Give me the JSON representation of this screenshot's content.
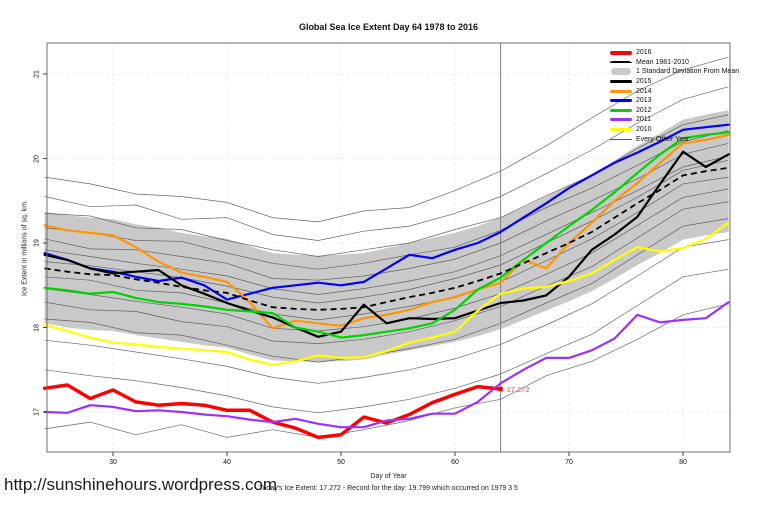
{
  "page": {
    "title": "Global Sea Ice Extent Day 64 1978 to 2016",
    "footer_url": "http://sunshinehours.wordpress.com",
    "footer_caption": "Today's Ice Extent: 17.272  - Record for the day: 19.799 which occurred on 1979 3 5"
  },
  "chart_data": {
    "type": "line",
    "title": "Global Sea Ice Extent Day 64 1978 to 2016",
    "xlabel": "Day of Year",
    "ylabel": "Ice Extent in millions of sq. km.",
    "xlim": [
      24,
      85
    ],
    "ylim": [
      16.5,
      21.4
    ],
    "xticks": [
      30,
      40,
      50,
      60,
      70,
      80
    ],
    "yticks": [
      17,
      18,
      19,
      20,
      21
    ],
    "grid": "dotted-light-gray",
    "vline_day": 64,
    "annotation": {
      "day": 64,
      "value": 17.272,
      "text": "17.272",
      "color": "#f87d7d"
    },
    "x_days": [
      24,
      26,
      28,
      30,
      32,
      34,
      36,
      38,
      40,
      42,
      44,
      46,
      48,
      50,
      52,
      54,
      56,
      58,
      60,
      62,
      64,
      66,
      68,
      70,
      72,
      74,
      76,
      78,
      80,
      82,
      84
    ],
    "band": {
      "name": "1 Standard Deviation From Mean",
      "color": "#c9c9c9",
      "upper": [
        19.37,
        19.33,
        19.3,
        19.28,
        19.22,
        19.18,
        19.12,
        19.08,
        19.05,
        18.96,
        18.88,
        18.86,
        18.85,
        18.86,
        18.88,
        18.94,
        19.0,
        19.06,
        19.12,
        19.2,
        19.3,
        19.42,
        19.55,
        19.68,
        19.82,
        19.98,
        20.15,
        20.3,
        20.46,
        20.52,
        20.57
      ],
      "lower": [
        18.05,
        18.0,
        17.97,
        17.96,
        17.91,
        17.87,
        17.83,
        17.79,
        17.76,
        17.68,
        17.61,
        17.6,
        17.59,
        17.6,
        17.62,
        17.68,
        17.73,
        17.78,
        17.83,
        17.9,
        17.98,
        18.09,
        18.2,
        18.31,
        18.43,
        18.58,
        18.74,
        18.88,
        19.04,
        19.09,
        19.13
      ]
    },
    "mean": {
      "name": "Mean 1981-2010",
      "color": "#000000",
      "dashed": true,
      "values": [
        18.7,
        18.66,
        18.63,
        18.62,
        18.57,
        18.53,
        18.48,
        18.44,
        18.41,
        18.32,
        18.24,
        18.22,
        18.21,
        18.22,
        18.24,
        18.3,
        18.36,
        18.41,
        18.47,
        18.55,
        18.64,
        18.76,
        18.88,
        19.0,
        19.13,
        19.3,
        19.47,
        19.63,
        19.8,
        19.85,
        19.89
      ]
    },
    "series": [
      {
        "name": "2013",
        "color": "#0000ff",
        "width": 2.2,
        "values": [
          18.88,
          18.8,
          18.7,
          18.66,
          18.6,
          18.55,
          18.59,
          18.5,
          18.33,
          18.4,
          18.47,
          18.5,
          18.53,
          18.5,
          18.54,
          18.7,
          18.86,
          18.82,
          18.92,
          19.0,
          19.13,
          19.3,
          19.47,
          19.65,
          19.8,
          19.95,
          20.07,
          20.2,
          20.34,
          20.37,
          20.4
        ]
      },
      {
        "name": "2014",
        "color": "#ff9500",
        "width": 2.2,
        "values": [
          19.21,
          19.15,
          19.12,
          19.09,
          18.95,
          18.78,
          18.65,
          18.6,
          18.54,
          18.3,
          17.99,
          18.08,
          18.05,
          18.02,
          18.11,
          18.15,
          18.21,
          18.3,
          18.36,
          18.45,
          18.53,
          18.8,
          18.7,
          19.0,
          19.24,
          19.5,
          19.71,
          19.95,
          20.18,
          20.22,
          20.28
        ]
      },
      {
        "name": "2015",
        "color": "#000000",
        "width": 2.2,
        "values": [
          18.86,
          18.8,
          18.7,
          18.64,
          18.66,
          18.68,
          18.5,
          18.4,
          18.29,
          18.2,
          18.12,
          18.0,
          17.89,
          17.95,
          18.27,
          18.05,
          18.11,
          18.1,
          18.11,
          18.2,
          18.29,
          18.32,
          18.38,
          18.6,
          18.92,
          19.1,
          19.31,
          19.7,
          20.08,
          19.9,
          20.05
        ]
      },
      {
        "name": "2012",
        "color": "#00d400",
        "width": 2.2,
        "values": [
          18.47,
          18.44,
          18.4,
          18.42,
          18.35,
          18.3,
          18.28,
          18.25,
          18.21,
          18.19,
          18.17,
          18.0,
          17.95,
          17.88,
          17.91,
          17.95,
          17.99,
          18.05,
          18.21,
          18.45,
          18.59,
          18.8,
          19.0,
          19.2,
          19.39,
          19.6,
          19.83,
          20.05,
          20.24,
          20.28,
          20.31
        ]
      },
      {
        "name": "2010",
        "color": "#ffff00",
        "width": 2.2,
        "values": [
          18.03,
          17.96,
          17.88,
          17.82,
          17.8,
          17.77,
          17.75,
          17.73,
          17.71,
          17.62,
          17.56,
          17.6,
          17.67,
          17.64,
          17.65,
          17.72,
          17.82,
          17.88,
          17.95,
          18.2,
          18.4,
          18.46,
          18.48,
          18.55,
          18.64,
          18.8,
          18.95,
          18.9,
          18.94,
          19.05,
          19.24
        ]
      },
      {
        "name": "2016",
        "color": "#ff0000",
        "width": 3.5,
        "endpoint": true,
        "values": [
          17.28,
          17.32,
          17.16,
          17.26,
          17.12,
          17.08,
          17.1,
          17.08,
          17.02,
          17.02,
          16.88,
          16.81,
          16.7,
          16.73,
          16.94,
          16.87,
          16.97,
          17.11,
          17.21,
          17.3,
          17.272,
          null,
          null,
          null,
          null,
          null,
          null,
          null,
          null,
          null,
          null
        ]
      },
      {
        "name": "2011",
        "color": "#9b30ff",
        "width": 2.2,
        "values": [
          17.0,
          16.99,
          17.08,
          17.06,
          17.01,
          17.02,
          17.0,
          16.97,
          16.95,
          16.91,
          16.88,
          16.92,
          16.86,
          16.82,
          16.82,
          16.9,
          16.92,
          16.98,
          16.98,
          17.12,
          17.34,
          17.5,
          17.64,
          17.64,
          17.73,
          17.87,
          18.15,
          18.06,
          18.09,
          18.11,
          18.3
        ]
      }
    ],
    "other_years": {
      "name": "Every Other Year",
      "color": "#555555",
      "width": 0.7,
      "x_days": [
        24,
        28,
        32,
        36,
        40,
        44,
        48,
        52,
        56,
        60,
        64,
        68,
        72,
        76,
        80,
        84
      ],
      "lines": [
        [
          19.78,
          19.7,
          19.58,
          19.55,
          19.48,
          19.3,
          19.25,
          19.38,
          19.42,
          19.62,
          19.85,
          20.15,
          20.48,
          20.8,
          21.05,
          21.2
        ],
        [
          19.55,
          19.43,
          19.45,
          19.28,
          19.3,
          19.1,
          19.03,
          19.14,
          19.2,
          19.35,
          19.55,
          19.82,
          20.1,
          20.42,
          20.7,
          20.85
        ],
        [
          19.35,
          19.32,
          19.18,
          19.16,
          19.03,
          18.92,
          18.84,
          18.92,
          19.0,
          19.16,
          19.3,
          19.56,
          19.8,
          20.12,
          20.4,
          20.52
        ],
        [
          19.18,
          19.12,
          19.03,
          19.02,
          18.88,
          18.76,
          18.69,
          18.76,
          18.86,
          18.95,
          19.15,
          19.42,
          19.65,
          19.92,
          20.2,
          20.33
        ],
        [
          19.05,
          18.93,
          18.92,
          18.84,
          18.76,
          18.58,
          18.56,
          18.61,
          18.7,
          18.81,
          19.0,
          19.26,
          19.5,
          19.76,
          20.05,
          20.18
        ],
        [
          18.92,
          18.84,
          18.76,
          18.69,
          18.61,
          18.46,
          18.39,
          18.46,
          18.55,
          18.66,
          18.85,
          19.1,
          19.36,
          19.62,
          19.9,
          20.03
        ],
        [
          18.78,
          18.73,
          18.66,
          18.59,
          18.49,
          18.36,
          18.29,
          18.36,
          18.45,
          18.58,
          18.74,
          19.0,
          19.26,
          19.54,
          19.86,
          19.98
        ],
        [
          18.6,
          18.56,
          18.44,
          18.41,
          18.29,
          18.16,
          18.09,
          18.16,
          18.25,
          18.36,
          18.54,
          18.79,
          19.05,
          19.36,
          19.7,
          19.78
        ],
        [
          18.46,
          18.39,
          18.31,
          18.24,
          18.16,
          17.99,
          17.96,
          18.01,
          18.1,
          18.23,
          18.4,
          18.63,
          18.88,
          19.21,
          19.54,
          19.64
        ],
        [
          18.3,
          18.21,
          18.19,
          18.07,
          18.01,
          17.84,
          17.81,
          17.86,
          17.95,
          18.08,
          18.25,
          18.49,
          18.72,
          19.06,
          19.4,
          19.49
        ],
        [
          18.1,
          18.06,
          17.94,
          17.91,
          17.79,
          17.66,
          17.59,
          17.66,
          17.75,
          17.86,
          18.05,
          18.29,
          18.52,
          18.86,
          19.2,
          19.29
        ],
        [
          17.85,
          17.79,
          17.71,
          17.63,
          17.54,
          17.41,
          17.34,
          17.41,
          17.5,
          17.63,
          17.8,
          18.03,
          18.28,
          18.61,
          18.95,
          19.04
        ],
        [
          17.5,
          17.43,
          17.37,
          17.29,
          17.19,
          17.06,
          16.99,
          17.06,
          17.15,
          17.28,
          17.45,
          17.69,
          17.92,
          18.26,
          18.6,
          18.69
        ],
        [
          16.8,
          16.88,
          16.73,
          16.85,
          16.7,
          16.79,
          16.7,
          16.79,
          16.9,
          17.05,
          17.15,
          17.43,
          17.6,
          17.86,
          18.15,
          18.28
        ]
      ]
    },
    "legend": [
      {
        "label": "2016",
        "swatch": "thick-line",
        "color": "#ff0000"
      },
      {
        "label": "Mean 1981-2010",
        "swatch": "dashed-line",
        "color": "#000000"
      },
      {
        "label": "1 Standard Deviation From Mean",
        "swatch": "band",
        "color": "#c9c9c9"
      },
      {
        "label": "2015",
        "swatch": "med-line",
        "color": "#000000"
      },
      {
        "label": "2014",
        "swatch": "med-line",
        "color": "#ff9500"
      },
      {
        "label": "2013",
        "swatch": "med-line",
        "color": "#0000ff"
      },
      {
        "label": "2012",
        "swatch": "med-line",
        "color": "#00d400"
      },
      {
        "label": "2011",
        "swatch": "med-line",
        "color": "#9b30ff"
      },
      {
        "label": "2010",
        "swatch": "med-line",
        "color": "#ffff00"
      },
      {
        "label": "Every Other Year",
        "swatch": "thin-line",
        "color": "#555555"
      }
    ],
    "legend_position": "top-right-inside"
  }
}
